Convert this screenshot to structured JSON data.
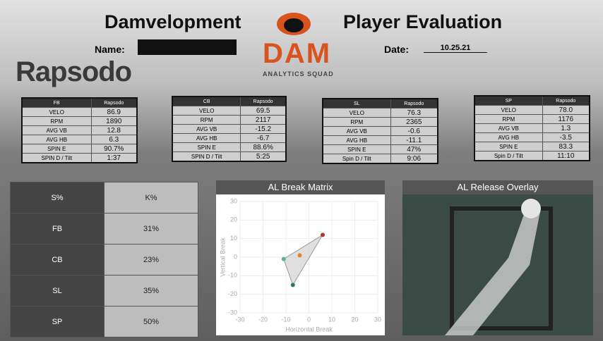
{
  "header": {
    "title_left": "Damvelopment",
    "title_right": "Player Evaluation",
    "name_label": "Name:",
    "date_label": "Date:",
    "date": "10.25.21"
  },
  "logos": {
    "rapsodo": "Rapsodo",
    "dam": "DAM",
    "dam_sub": "ANALYTICS SQUAD"
  },
  "pitch_tables": [
    {
      "header": [
        "FB",
        "Rapsodo"
      ],
      "rows": [
        [
          "VELO",
          "86.9"
        ],
        [
          "RPM",
          "1890"
        ],
        [
          "AVG VB",
          "12.8"
        ],
        [
          "AVG HB",
          "6.3"
        ],
        [
          "SPIN E",
          "90.7%"
        ],
        [
          "SPIN D / Tilt",
          "1:37"
        ]
      ]
    },
    {
      "header": [
        "CB",
        "Rapsodo"
      ],
      "rows": [
        [
          "VELO",
          "69.5"
        ],
        [
          "RPM",
          "2117"
        ],
        [
          "AVG VB",
          "-15.2"
        ],
        [
          "AVG HB",
          "-6.7"
        ],
        [
          "SPIN E",
          "88.6%"
        ],
        [
          "SPIN D / Tilt",
          "5:25"
        ]
      ]
    },
    {
      "header": [
        "SL",
        "Rapsodo"
      ],
      "rows": [
        [
          "VELO",
          "76.3"
        ],
        [
          "RPM",
          "2365"
        ],
        [
          "AVG VB",
          "-0.6"
        ],
        [
          "AVG HB",
          "-11.1"
        ],
        [
          "SPIN E",
          "47%"
        ],
        [
          "Spin D / Tilt",
          "9:06"
        ]
      ]
    },
    {
      "header": [
        "SP",
        "Rapsodo"
      ],
      "rows": [
        [
          "VELO",
          "78.0"
        ],
        [
          "RPM",
          "1176"
        ],
        [
          "AVG VB",
          "1.3"
        ],
        [
          "AVG HB",
          "-3.5"
        ],
        [
          "SPIN E",
          "83.3"
        ],
        [
          "Spin D / Tilt",
          "11:10"
        ]
      ]
    }
  ],
  "strike_table": {
    "header": [
      "S%",
      "K%"
    ],
    "rows": [
      [
        "FB",
        "31%"
      ],
      [
        "CB",
        "23%"
      ],
      [
        "SL",
        "35%"
      ],
      [
        "SP",
        "50%"
      ]
    ]
  },
  "chart_data": {
    "type": "scatter",
    "title": "AL Break Matrix",
    "x_label": "Horizontal Break",
    "y_label": "Vertical Break",
    "series": [
      {
        "color": "#b0352b",
        "x": [
          6
        ],
        "values": [
          12
        ]
      },
      {
        "color": "#e8822a",
        "x": [
          -4
        ],
        "values": [
          1
        ]
      },
      {
        "color": "#4fb89d",
        "x": [
          -11
        ],
        "values": [
          -1
        ]
      },
      {
        "color": "#2d7a5a",
        "x": [
          -7
        ],
        "values": [
          -15
        ]
      }
    ],
    "xlim": [
      -30,
      30
    ],
    "xticks": [
      -30,
      -20,
      -10,
      0,
      10,
      20,
      30
    ],
    "ylim": [
      -30,
      30
    ],
    "yticks": [
      -30,
      -20,
      -10,
      0,
      10,
      20,
      30
    ],
    "grid": true
  },
  "overlay": {
    "title": "AL Release Overlay"
  }
}
